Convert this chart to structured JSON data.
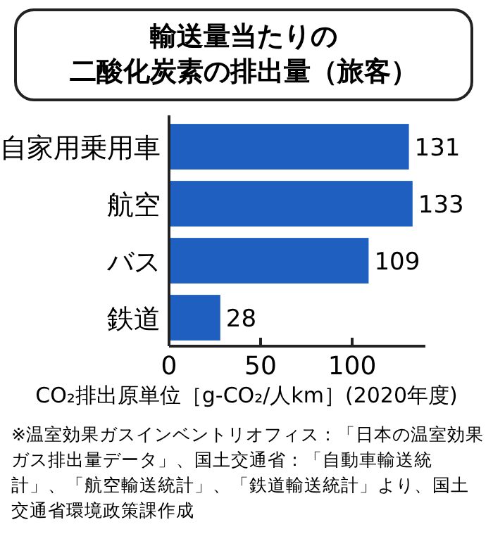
{
  "chart_data": {
    "type": "bar",
    "orientation": "horizontal",
    "title": "輸送量当たりの",
    "subtitle": "二酸化炭素の排出量（旅客）",
    "categories": [
      "自家用乗用車",
      "航空",
      "バス",
      "鉄道"
    ],
    "values": [
      131,
      133,
      109,
      28
    ],
    "color": "#1f5fbf",
    "data_labels": true,
    "xlim": [
      0,
      140
    ],
    "xticks": [
      0,
      50,
      100
    ],
    "xlabel": "CO₂排出原単位［g-CO₂/人km］(2020年度)",
    "annotations": [
      "※温室効果ガスインベントリオフィス：「日本の温室効果ガス排出量データ」、国土交通省：「自動車輸送統計」、「航空輸送統計」、「鉄道輸送統計」より、国土交通省環境政策課作成"
    ]
  }
}
